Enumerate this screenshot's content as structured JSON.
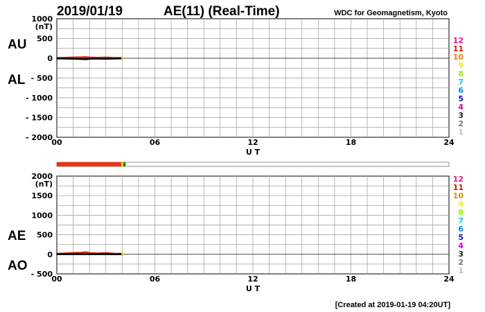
{
  "header": {
    "date": "2019/01/19",
    "title": "AE(11) (Real-Time)",
    "source": "WDC for Geomagnetism, Kyoto"
  },
  "footer": {
    "created": "[Created at 2019-01-19 04:20UT]"
  },
  "chart_data": [
    {
      "type": "line",
      "panel": "upper",
      "left_labels": {
        "top": "AU",
        "bottom": "AL"
      },
      "unit_label": "(nT)",
      "xlabel": "U T",
      "x_ticks": [
        "00",
        "06",
        "12",
        "18",
        "24"
      ],
      "xlim": [
        0,
        24
      ],
      "ylim": [
        -2000,
        1000
      ],
      "y_tick_values": [
        1000,
        500,
        0,
        -500,
        -1000,
        -1500,
        -2000
      ],
      "y_tick_labels": [
        "1000",
        "500",
        "0",
        "- 500",
        "- 1000",
        "- 1500",
        "- 2000"
      ],
      "grid": true,
      "series": [
        {
          "name": "AU",
          "color": "#cc2200",
          "x": [
            0,
            0.5,
            1,
            1.5,
            1.8,
            2,
            2.5,
            3,
            3.5,
            4.0
          ],
          "y": [
            10,
            15,
            20,
            25,
            30,
            20,
            15,
            20,
            10,
            10
          ]
        },
        {
          "name": "AL",
          "color": "#000000",
          "x": [
            0,
            0.5,
            1,
            1.5,
            1.8,
            2,
            2.5,
            3,
            3.5,
            4.0
          ],
          "y": [
            -5,
            -10,
            -15,
            -20,
            -25,
            -15,
            -10,
            -15,
            -10,
            -5
          ]
        }
      ]
    },
    {
      "type": "line",
      "panel": "lower",
      "left_labels": {
        "top": "AE",
        "bottom": "AO"
      },
      "unit_label": "(nT)",
      "xlabel": "U T",
      "x_ticks": [
        "00",
        "06",
        "12",
        "18",
        "24"
      ],
      "xlim": [
        0,
        24
      ],
      "ylim": [
        -500,
        2000
      ],
      "y_tick_values": [
        2000,
        1500,
        1000,
        500,
        0,
        -500
      ],
      "y_tick_labels": [
        "2000",
        "1500",
        "1000",
        "500",
        "0",
        "- 500"
      ],
      "grid": true,
      "series": [
        {
          "name": "AE",
          "color": "#cc2200",
          "x": [
            0,
            0.5,
            1,
            1.5,
            1.8,
            2,
            2.5,
            3,
            3.5,
            4.0
          ],
          "y": [
            15,
            25,
            35,
            45,
            55,
            35,
            25,
            35,
            20,
            15
          ]
        },
        {
          "name": "AO",
          "color": "#000000",
          "x": [
            0,
            0.5,
            1,
            1.5,
            1.8,
            2,
            2.5,
            3,
            3.5,
            4.0
          ],
          "y": [
            3,
            3,
            3,
            3,
            3,
            3,
            3,
            3,
            0,
            3
          ]
        }
      ]
    }
  ],
  "station_bar": {
    "segments": [
      {
        "from": 0,
        "to": 3.95,
        "color": "#ee3311"
      },
      {
        "from": 3.95,
        "to": 4.08,
        "color": "#dddd00"
      },
      {
        "from": 4.08,
        "to": 4.2,
        "color": "#226600"
      }
    ]
  },
  "station_legend": [
    {
      "label": "12",
      "color": "#ee1188"
    },
    {
      "label": "11",
      "color": "#dd1100"
    },
    {
      "label": "10",
      "color": "#ee8800"
    },
    {
      "label": "9",
      "color": "#eeee00"
    },
    {
      "label": "8",
      "color": "#99ee00"
    },
    {
      "label": "7",
      "color": "#00ccee"
    },
    {
      "label": "6",
      "color": "#0088ee"
    },
    {
      "label": "5",
      "color": "#1111bb"
    },
    {
      "label": "4",
      "color": "#cc00cc"
    },
    {
      "label": "3",
      "color": "#222222"
    },
    {
      "label": "2",
      "color": "#777777"
    },
    {
      "label": "1",
      "color": "#bbbbbb"
    }
  ]
}
